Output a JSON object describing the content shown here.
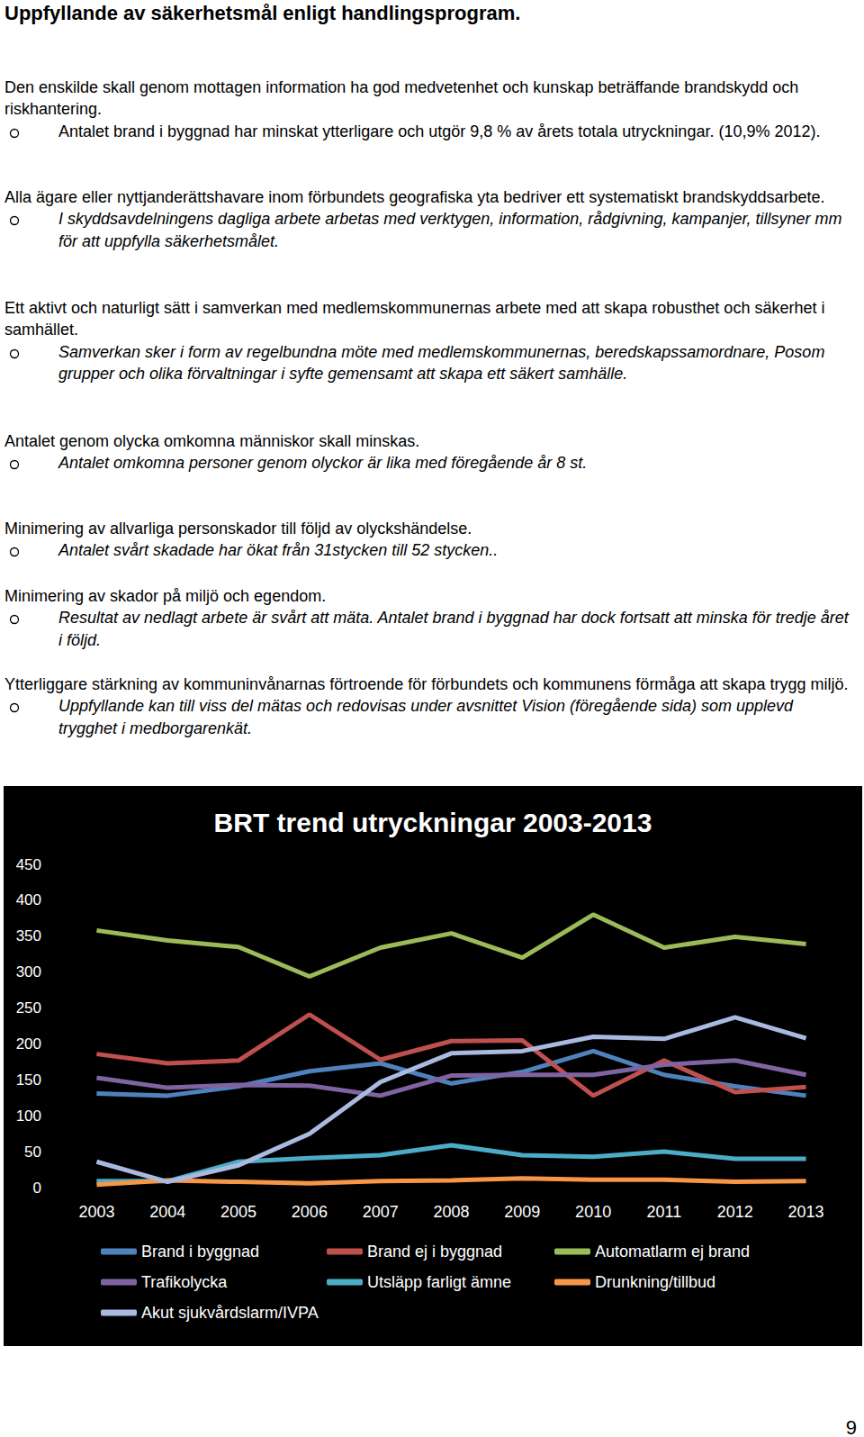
{
  "page": {
    "heading": "Uppfyllande av säkerhetsmål enligt handlingsprogram.",
    "sections": [
      {
        "text": "Den enskilde skall genom mottagen information ha god medvetenhet och kunskap beträffande brandskydd och riskhantering.",
        "bullet": "Antalet brand i byggnad har minskat ytterligare och utgör 9,8 % av årets totala utryckningar. (10,9% 2012)."
      },
      {
        "text": "Alla ägare eller nyttjanderättshavare inom förbundets geografiska yta bedriver ett systematiskt brandskyddsarbete.",
        "bullet": "I skyddsavdelningens dagliga arbete arbetas med verktygen, information, rådgivning, kampanjer, tillsyner mm för att uppfylla säkerhetsmålet."
      },
      {
        "text": "Ett aktivt och naturligt sätt i samverkan med medlemskommunernas arbete med att skapa robusthet och säkerhet i samhället.",
        "bullet": "Samverkan sker i form av regelbundna möte med medlemskommunernas, beredskapssamordnare, Posom grupper och olika förvaltningar i syfte gemensamt att skapa ett säkert samhälle."
      },
      {
        "text": "Antalet genom olycka omkomna människor skall minskas.",
        "bullet": "Antalet omkomna personer genom olyckor är lika med föregående år 8 st."
      },
      {
        "text": "Minimering av allvarliga personskador till följd av olyckshändelse.",
        "bullet": "Antalet svårt skadade  har ökat från 31stycken till 52 stycken.."
      },
      {
        "text": "Minimering av skador på miljö och egendom.",
        "bullet": "Resultat av nedlagt arbete är svårt att mäta. Antalet brand i byggnad har dock fortsatt att minska för tredje året i följd."
      },
      {
        "text": "Ytterliggare stärkning av kommuninvånarnas förtroende för förbundets och kommunens förmåga att skapa trygg miljö.",
        "bullet": "Uppfyllande kan till viss del mätas och redovisas under avsnittet Vision (föregående sida) som upplevd trygghet i medborgarenkät."
      }
    ],
    "page_number": "9"
  },
  "chart_data": {
    "type": "line",
    "title": "BRT trend utryckningar 2003-2013",
    "categories": [
      "2003",
      "2004",
      "2005",
      "2006",
      "2007",
      "2008",
      "2009",
      "2010",
      "2011",
      "2012",
      "2013"
    ],
    "series": [
      {
        "name": "Brand i byggnad",
        "color": "#4f81bd",
        "values": [
          131,
          128,
          141,
          162,
          173,
          145,
          161,
          190,
          157,
          141,
          128
        ]
      },
      {
        "name": "Brand ej i byggnad",
        "color": "#c0504d",
        "values": [
          186,
          173,
          177,
          241,
          178,
          204,
          205,
          128,
          177,
          133,
          140
        ]
      },
      {
        "name": "Automatlarm ej brand",
        "color": "#9bbb59",
        "values": [
          358,
          344,
          335,
          294,
          334,
          354,
          320,
          380,
          334,
          349,
          339
        ]
      },
      {
        "name": "Trafikolycka",
        "color": "#8064a2",
        "values": [
          153,
          139,
          143,
          142,
          128,
          156,
          157,
          157,
          171,
          177,
          157
        ]
      },
      {
        "name": "Utsläpp farligt ämne",
        "color": "#4bacc6",
        "values": [
          9,
          9,
          36,
          41,
          45,
          59,
          45,
          43,
          50,
          40,
          40
        ]
      },
      {
        "name": "Drunkning/tillbud",
        "color": "#f79646",
        "values": [
          4,
          10,
          8,
          6,
          9,
          10,
          13,
          11,
          11,
          8,
          9
        ]
      },
      {
        "name": "Akut sjukvårdslarm/IVPA",
        "color": "#aab9e0",
        "values": [
          36,
          8,
          31,
          75,
          147,
          187,
          190,
          210,
          207,
          237,
          208
        ]
      }
    ],
    "ylim": [
      0,
      450
    ],
    "yticks": [
      0,
      50,
      100,
      150,
      200,
      250,
      300,
      350,
      400,
      450
    ],
    "grid": false,
    "legend": "bottom"
  }
}
